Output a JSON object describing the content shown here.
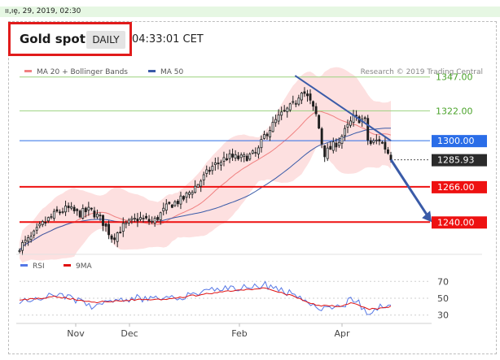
{
  "header": {
    "date_label": "ıı,ıȩ, 29, 2019, 02:30",
    "title": "Gold spot",
    "period": "DAILY",
    "time": "04:33:01 CET"
  },
  "colors": {
    "candle": "#1f1f1f",
    "ma20": "#f08080",
    "band_fill": "#fde0e0",
    "ma50": "#3a5ba8",
    "resistance": "#9bd27f",
    "blue_level": "#2a6de8",
    "red_level": "#ee1111",
    "trend": "#3a5ba8",
    "rsi": "#5577e6",
    "rsi_ma": "#e01010"
  },
  "chart_data": [
    {
      "type": "candlestick",
      "legend": [
        {
          "name": "MA 20 + Bollinger Bands",
          "color": "#f08080"
        },
        {
          "name": "MA 50",
          "color": "#3a5ba8"
        }
      ],
      "legend_position": "top-left",
      "credit": "Research © 2019 Trading Central",
      "x_labels": [
        "Nov",
        "Dec",
        "Feb",
        "Apr"
      ],
      "ylim": [
        1218,
        1357
      ],
      "grid": false,
      "levels": [
        {
          "value": 1347.0,
          "label": "1347.00",
          "style": "green-line"
        },
        {
          "value": 1322.0,
          "label": "1322.00",
          "style": "green-line"
        },
        {
          "value": 1300.0,
          "label": "1300.00",
          "style": "blue-box"
        },
        {
          "value": 1285.93,
          "label": "1285.93",
          "style": "last-price"
        },
        {
          "value": 1266.0,
          "label": "1266.00",
          "style": "red-box"
        },
        {
          "value": 1240.0,
          "label": "1240.00",
          "style": "red-box"
        }
      ],
      "trendline": [
        {
          "x": 0.742,
          "y": 1348
        },
        {
          "x": 1.0,
          "y": 1300
        }
      ],
      "projection": [
        {
          "x": 1.0,
          "y": 1286
        },
        {
          "x": 1.11,
          "y": 1240
        }
      ],
      "close_anchors": [
        [
          0.0,
          1222
        ],
        [
          0.03,
          1228
        ],
        [
          0.06,
          1238
        ],
        [
          0.1,
          1247
        ],
        [
          0.13,
          1250
        ],
        [
          0.16,
          1246
        ],
        [
          0.19,
          1249
        ],
        [
          0.22,
          1242
        ],
        [
          0.25,
          1228
        ],
        [
          0.28,
          1237
        ],
        [
          0.32,
          1243
        ],
        [
          0.36,
          1240
        ],
        [
          0.4,
          1252
        ],
        [
          0.44,
          1257
        ],
        [
          0.48,
          1268
        ],
        [
          0.52,
          1281
        ],
        [
          0.56,
          1288
        ],
        [
          0.6,
          1287
        ],
        [
          0.64,
          1291
        ],
        [
          0.66,
          1304
        ],
        [
          0.7,
          1318
        ],
        [
          0.74,
          1327
        ],
        [
          0.76,
          1338
        ],
        [
          0.78,
          1330
        ],
        [
          0.8,
          1318
        ],
        [
          0.82,
          1290
        ],
        [
          0.86,
          1300
        ],
        [
          0.9,
          1317
        ],
        [
          0.93,
          1315
        ],
        [
          0.94,
          1297
        ],
        [
          0.97,
          1301
        ],
        [
          1.0,
          1288
        ]
      ],
      "n_candles": 130
    },
    {
      "type": "line",
      "legend": [
        {
          "name": "RSI",
          "color": "#5577e6"
        },
        {
          "name": "9MA",
          "color": "#e01010"
        }
      ],
      "ylim": [
        22,
        78
      ],
      "y_ticks": [
        70,
        50,
        30
      ],
      "dashed_levels": [
        70,
        50,
        30
      ],
      "rsi_anchors": [
        [
          0.0,
          48
        ],
        [
          0.1,
          55
        ],
        [
          0.2,
          40
        ],
        [
          0.3,
          50
        ],
        [
          0.4,
          49
        ],
        [
          0.5,
          58
        ],
        [
          0.6,
          63
        ],
        [
          0.66,
          66
        ],
        [
          0.74,
          54
        ],
        [
          0.8,
          40
        ],
        [
          0.86,
          38
        ],
        [
          0.9,
          50
        ],
        [
          0.94,
          32
        ],
        [
          0.98,
          42
        ],
        [
          1.0,
          44
        ]
      ],
      "ma_anchors": [
        [
          0.0,
          48
        ],
        [
          0.1,
          52
        ],
        [
          0.2,
          45
        ],
        [
          0.3,
          48
        ],
        [
          0.4,
          49
        ],
        [
          0.5,
          55
        ],
        [
          0.6,
          60
        ],
        [
          0.66,
          62
        ],
        [
          0.74,
          52
        ],
        [
          0.8,
          42
        ],
        [
          0.86,
          40
        ],
        [
          0.9,
          45
        ],
        [
          0.94,
          37
        ],
        [
          0.98,
          38
        ],
        [
          1.0,
          40
        ]
      ]
    }
  ]
}
